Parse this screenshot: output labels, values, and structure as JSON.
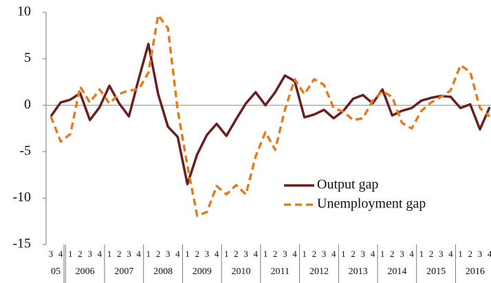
{
  "chart_data": {
    "type": "line",
    "categories": [
      "3",
      "4",
      "1",
      "2",
      "3",
      "4",
      "1",
      "2",
      "3",
      "4",
      "1",
      "2",
      "3",
      "4",
      "1",
      "2",
      "3",
      "4",
      "1",
      "2",
      "3",
      "4",
      "1",
      "2",
      "3",
      "4",
      "1",
      "2",
      "3",
      "4",
      "1",
      "2",
      "3",
      "4",
      "1",
      "2",
      "3",
      "4",
      "1",
      "2",
      "3",
      "4",
      "1",
      "2",
      "3",
      "4"
    ],
    "year_labels": [
      "05",
      "2006",
      "2007",
      "2008",
      "2009",
      "2010",
      "2011",
      "2012",
      "2013",
      "2014",
      "2015",
      "2016"
    ],
    "series": [
      {
        "name": "Output gap",
        "color": "#6b1e1e",
        "dash": false,
        "values": [
          -1.2,
          0.3,
          0.6,
          1.3,
          -1.6,
          -0.2,
          2.1,
          0.2,
          -1.2,
          2.8,
          6.6,
          1.2,
          -2.3,
          -3.4,
          -8.5,
          -5.3,
          -3.2,
          -2.0,
          -3.3,
          -1.5,
          0.2,
          1.4,
          0,
          1.4,
          3.2,
          2.6,
          -1.3,
          -1.0,
          -0.5,
          -1.4,
          -0.6,
          0.7,
          1.1,
          0.2,
          1.7,
          -1.1,
          -0.6,
          -0.3,
          0.5,
          0.8,
          1.0,
          0.9,
          -0.3,
          0.1,
          -2.6,
          -0.2
        ]
      },
      {
        "name": "Unemployment gap",
        "color": "#e57c1b",
        "dash": true,
        "values": [
          -1.2,
          -3.9,
          -3.1,
          2.0,
          0.3,
          1.7,
          0.2,
          1.2,
          1.6,
          1.7,
          3.5,
          9.7,
          8.3,
          -0.5,
          -6.5,
          -11.9,
          -11.5,
          -8.7,
          -9.6,
          -8.6,
          -9.6,
          -5.5,
          -2.9,
          -4.8,
          -0.5,
          2.8,
          1.2,
          2.8,
          2.2,
          -0.3,
          -0.7,
          -1.6,
          -1.4,
          0.5,
          1.5,
          0.9,
          -1.9,
          -2.5,
          -0.6,
          0.3,
          0.9,
          1.6,
          4.3,
          3.6,
          -0.3,
          -1.2
        ]
      }
    ],
    "ylim": [
      -15,
      10
    ],
    "yticks": [
      -15,
      -10,
      -5,
      0,
      5,
      10
    ],
    "legend": "lower right"
  }
}
